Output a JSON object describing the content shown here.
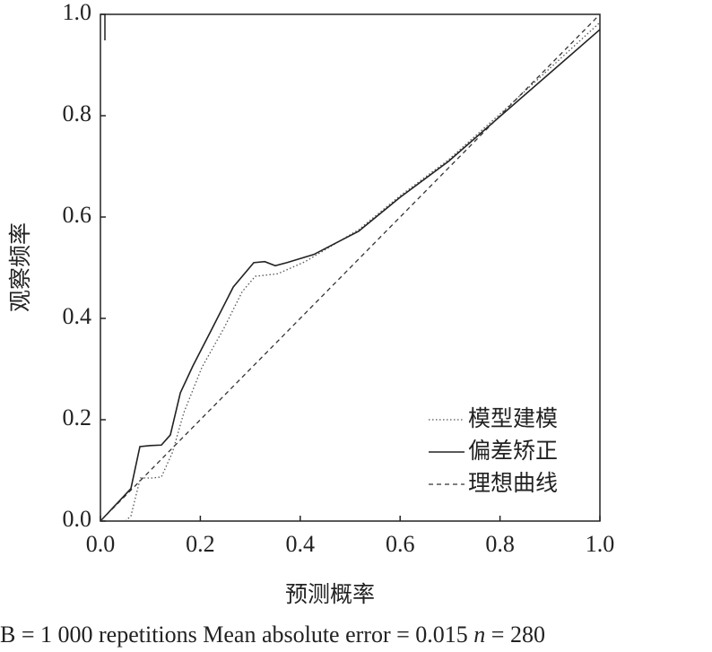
{
  "chart_data": {
    "type": "line",
    "xlabel": "预测概率",
    "ylabel": "观察频率",
    "xlim": [
      0,
      1
    ],
    "ylim": [
      0,
      1
    ],
    "xticks": [
      {
        "value": 0,
        "label": "0.0"
      },
      {
        "value": 0.2,
        "label": "0.2"
      },
      {
        "value": 0.4,
        "label": "0.4"
      },
      {
        "value": 0.6,
        "label": "0.6"
      },
      {
        "value": 0.8,
        "label": "0.8"
      },
      {
        "value": 1,
        "label": "1.0"
      }
    ],
    "yticks": [
      {
        "value": 0,
        "label": "0.0"
      },
      {
        "value": 0.2,
        "label": "0.2"
      },
      {
        "value": 0.4,
        "label": "0.4"
      },
      {
        "value": 0.6,
        "label": "0.6"
      },
      {
        "value": 0.8,
        "label": "0.8"
      },
      {
        "value": 1,
        "label": "1.0"
      }
    ],
    "legend": "lower right",
    "series": [
      {
        "name": "模型建模",
        "color": "#555",
        "style": "dotted",
        "x": [
          0.05,
          0.061,
          0.08,
          0.104,
          0.122,
          0.144,
          0.167,
          0.203,
          0.248,
          0.284,
          0.31,
          0.355,
          0.41,
          0.517,
          0.6,
          0.697,
          0.804,
          1.0
        ],
        "values": [
          0,
          0.01,
          0.085,
          0.085,
          0.087,
          0.135,
          0.214,
          0.303,
          0.382,
          0.453,
          0.483,
          0.488,
          0.512,
          0.575,
          0.642,
          0.713,
          0.807,
          0.984
        ]
      },
      {
        "name": "偏差矫正",
        "color": "#222",
        "style": "solid",
        "x": [
          0,
          0.061,
          0.079,
          0.1,
          0.122,
          0.14,
          0.16,
          0.185,
          0.22,
          0.266,
          0.307,
          0.329,
          0.35,
          0.373,
          0.427,
          0.517,
          0.6,
          0.697,
          0.804,
          1.0
        ],
        "values": [
          0,
          0.064,
          0.147,
          0.149,
          0.15,
          0.17,
          0.253,
          0.306,
          0.373,
          0.462,
          0.51,
          0.512,
          0.504,
          0.51,
          0.526,
          0.572,
          0.639,
          0.71,
          0.802,
          0.97
        ]
      },
      {
        "name": "理想曲线",
        "color": "#333",
        "style": "dashed",
        "x": [
          0,
          1
        ],
        "values": [
          0,
          1
        ]
      }
    ],
    "footnote": [
      "B = 1 000 repetitions  Mean absolute error = 0.015 ",
      "n",
      " = 280"
    ]
  }
}
